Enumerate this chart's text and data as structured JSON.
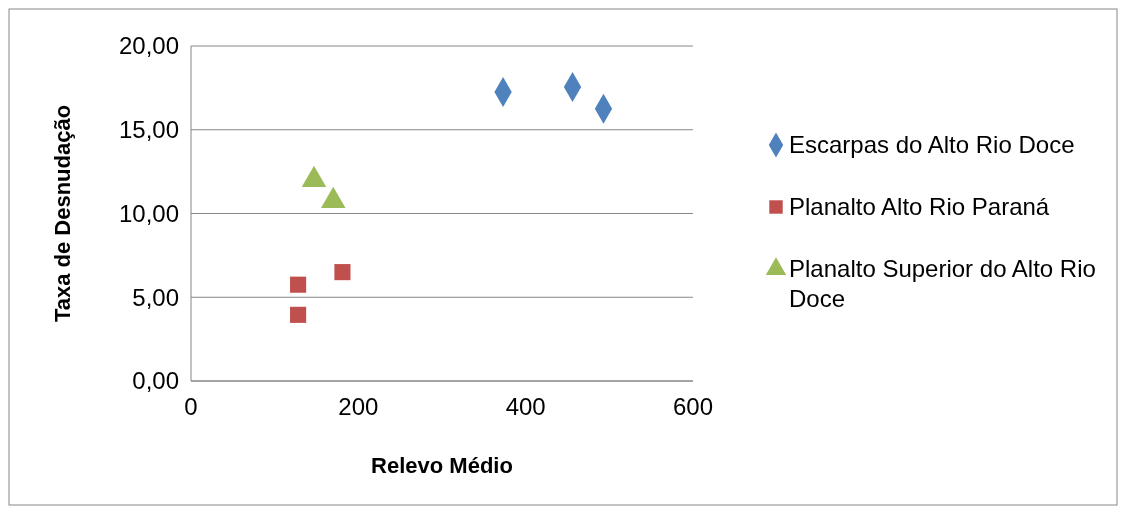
{
  "chart_data": {
    "type": "scatter",
    "xlabel": "Relevo Médio",
    "ylabel": "Taxa de Desnudação",
    "xlim": [
      0,
      600
    ],
    "xticks": [
      0,
      200,
      400,
      600
    ],
    "ylim": [
      0,
      20
    ],
    "yticks": [
      {
        "value": 0,
        "label": "0,00"
      },
      {
        "value": 5,
        "label": "5,00"
      },
      {
        "value": 10,
        "label": "10,00"
      },
      {
        "value": 15,
        "label": "15,00"
      },
      {
        "value": 20,
        "label": "20,00"
      }
    ],
    "grid": "y",
    "legend": "right",
    "series": [
      {
        "name": "Escarpas do Alto Rio Doce",
        "color": "#4f81bd",
        "marker": "diamond",
        "x": [
          373,
          456,
          493
        ],
        "values": [
          17.25,
          17.55,
          16.25
        ]
      },
      {
        "name": "Planalto Alto Rio Paraná",
        "color": "#c0504d",
        "marker": "square",
        "x": [
          128,
          128,
          181
        ],
        "values": [
          5.75,
          3.95,
          6.5
        ]
      },
      {
        "name": "Planalto Superior do Alto Rio Doce",
        "color": "#9bbb59",
        "marker": "triangle",
        "x": [
          147,
          170
        ],
        "values": [
          12.0,
          10.75
        ]
      }
    ]
  }
}
